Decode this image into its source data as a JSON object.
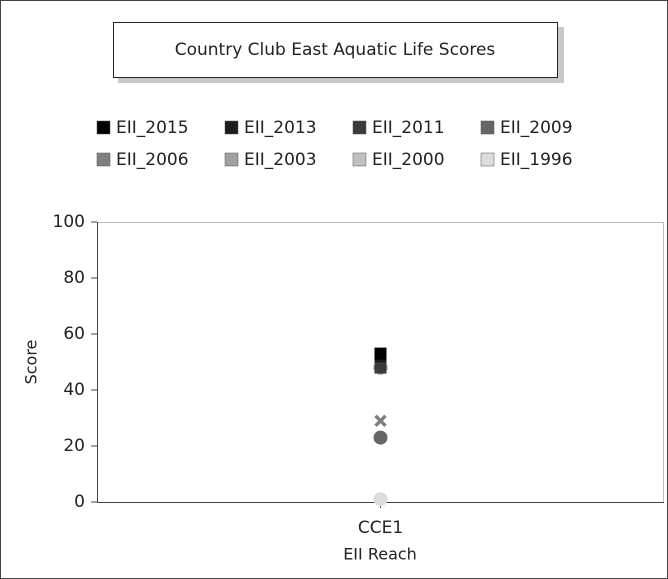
{
  "chart_data": {
    "type": "scatter",
    "title": "Country Club East Aquatic Life Scores",
    "x_label": "EII Reach",
    "y_label": "Score",
    "categories": [
      "CCE1"
    ],
    "series": [
      {
        "name": "EII_2015",
        "color": "#000000",
        "marker": "square",
        "values": [
          53
        ]
      },
      {
        "name": "EII_2013",
        "color": "#1c1c1c",
        "marker": "square",
        "values": [
          52
        ]
      },
      {
        "name": "EII_2011",
        "color": "#3a3a3a",
        "marker": "square",
        "values": [
          48
        ]
      },
      {
        "name": "EII_2009",
        "color": "#666666",
        "marker": "circle",
        "values": [
          23
        ]
      },
      {
        "name": "EII_2006",
        "color": "#808080",
        "marker": "cross",
        "values": [
          29
        ]
      },
      {
        "name": "EII_2003",
        "color": "#a0a0a0",
        "marker": "plus",
        "values": [
          48
        ]
      },
      {
        "name": "EII_2000",
        "color": "#c0c0c0",
        "marker": "plus",
        "values": [
          48
        ]
      },
      {
        "name": "EII_1996",
        "color": "#dcdcdc",
        "marker": "circle",
        "values": [
          1
        ]
      }
    ],
    "ylim": [
      0,
      100
    ],
    "yticks": [
      0,
      20,
      40,
      60,
      80,
      100
    ],
    "grid": false
  }
}
